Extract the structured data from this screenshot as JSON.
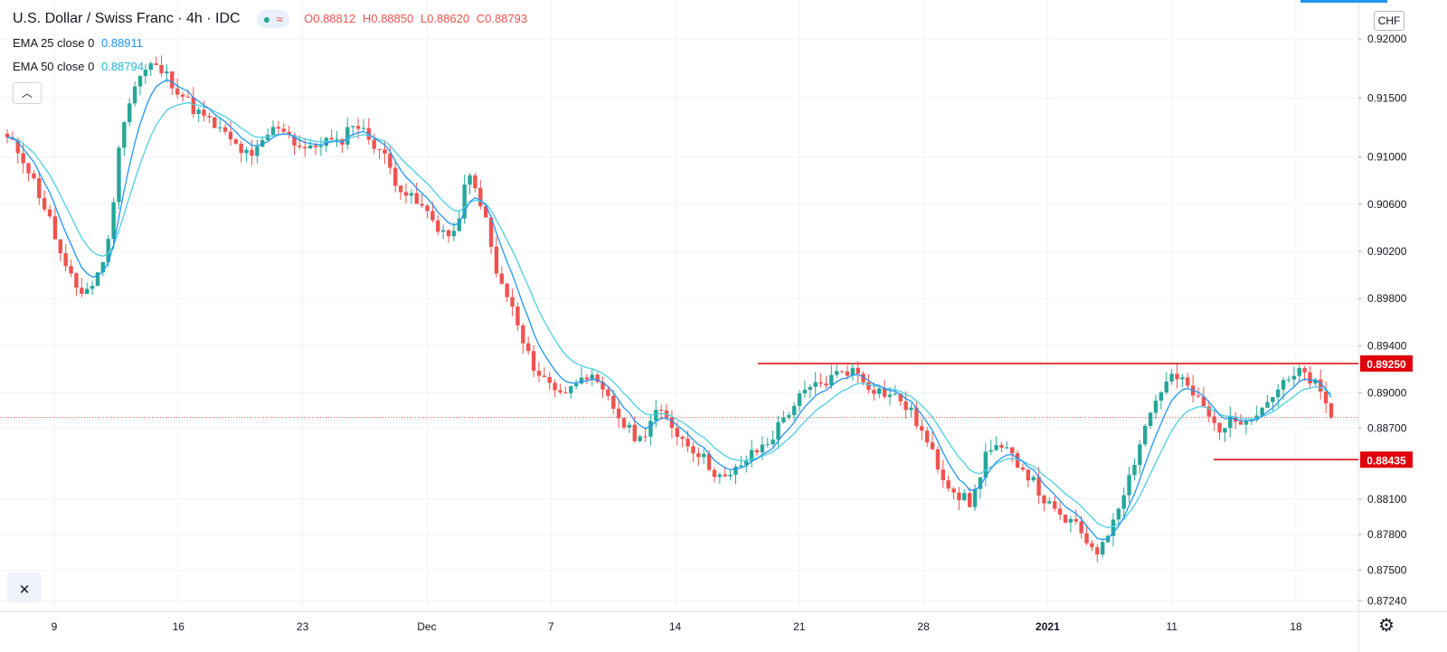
{
  "header": {
    "symbol_title": "U.S. Dollar / Swiss Franc · 4h · IDC",
    "ohlc": {
      "open": "O0.88812",
      "high": "H0.88850",
      "low": "L0.88620",
      "close": "C0.88793"
    },
    "indicators": [
      {
        "label": "EMA 25 close 0",
        "value": "0.88911"
      },
      {
        "label": "EMA 50 close 0",
        "value": "0.88794"
      }
    ],
    "currency_badge": "CHF"
  },
  "colors": {
    "up": "#26a69a",
    "down": "#ef5350",
    "ema25": "#2196f3",
    "ema50": "#4dd0e1",
    "level": "#e0000a",
    "grid": "#f0f3fa"
  },
  "icons": {
    "collapse": "chevron-up-icon",
    "close": "close-icon",
    "settings": "gear-icon"
  },
  "chart_data": {
    "type": "candlestick",
    "title": "U.S. Dollar / Swiss Franc · 4h · IDC",
    "y_axis": {
      "side": "right",
      "ticks": [
        "0.92000",
        "0.91500",
        "0.91000",
        "0.90600",
        "0.90200",
        "0.89800",
        "0.89400",
        "0.89000",
        "0.88700",
        "0.88100",
        "0.87800",
        "0.87500",
        "0.87240"
      ]
    },
    "x_axis": {
      "ticks": [
        "9",
        "16",
        "23",
        "Dec",
        "7",
        "14",
        "21",
        "28",
        "2021",
        "11",
        "18"
      ],
      "bold_tick": "2021"
    },
    "ylim": [
      0.8715,
      0.9233
    ],
    "grid": true,
    "price_levels": [
      {
        "label": "0.89250",
        "value": 0.8925,
        "name": "resistance"
      },
      {
        "label": "0.88435",
        "value": 0.88435,
        "name": "support"
      }
    ],
    "current_price": 0.88793,
    "anchor_closes": [
      0.9115,
      0.9102,
      0.9075,
      0.9045,
      0.9005,
      0.8985,
      0.8992,
      0.9025,
      0.913,
      0.9165,
      0.9178,
      0.917,
      0.9155,
      0.914,
      0.913,
      0.912,
      0.9108,
      0.9098,
      0.9118,
      0.9128,
      0.9112,
      0.9105,
      0.9115,
      0.911,
      0.913,
      0.9118,
      0.9105,
      0.908,
      0.9065,
      0.9055,
      0.904,
      0.903,
      0.9085,
      0.906,
      0.9,
      0.8975,
      0.8935,
      0.8915,
      0.8905,
      0.89,
      0.892,
      0.8905,
      0.889,
      0.887,
      0.886,
      0.8885,
      0.8875,
      0.886,
      0.885,
      0.8835,
      0.8825,
      0.884,
      0.885,
      0.886,
      0.888,
      0.8895,
      0.8905,
      0.891,
      0.892,
      0.8918,
      0.8905,
      0.89,
      0.8895,
      0.888,
      0.8855,
      0.883,
      0.8815,
      0.8805,
      0.885,
      0.8852,
      0.8845,
      0.883,
      0.881,
      0.8795,
      0.879,
      0.8775,
      0.8765,
      0.88,
      0.883,
      0.887,
      0.89,
      0.8915,
      0.8905,
      0.889,
      0.887,
      0.8875,
      0.888,
      0.8885,
      0.89,
      0.891,
      0.8918,
      0.8905,
      0.8879
    ]
  }
}
